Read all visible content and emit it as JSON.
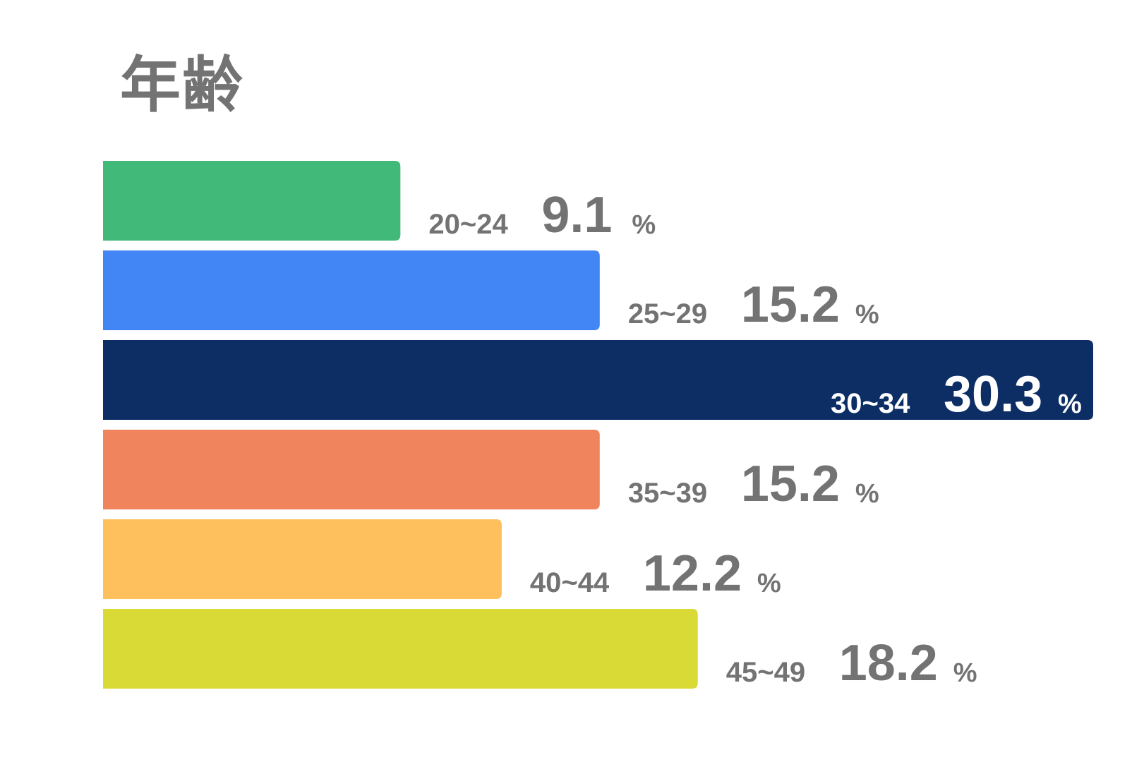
{
  "chart_data": {
    "type": "bar",
    "orientation": "horizontal",
    "title": "年齢",
    "categories": [
      "20~24",
      "25~29",
      "30~34",
      "35~39",
      "40~44",
      "45~49"
    ],
    "values": [
      9.1,
      15.2,
      30.3,
      15.2,
      12.2,
      18.2
    ],
    "unit": "%",
    "colors": [
      "#41b978",
      "#4285f4",
      "#0c2e65",
      "#ef845d",
      "#fdc05c",
      "#dada36"
    ],
    "label_color": "#737373",
    "highlight_label_color": "#ffffff",
    "xlim": [
      0,
      30.3
    ],
    "grid": false,
    "legend": "none"
  }
}
